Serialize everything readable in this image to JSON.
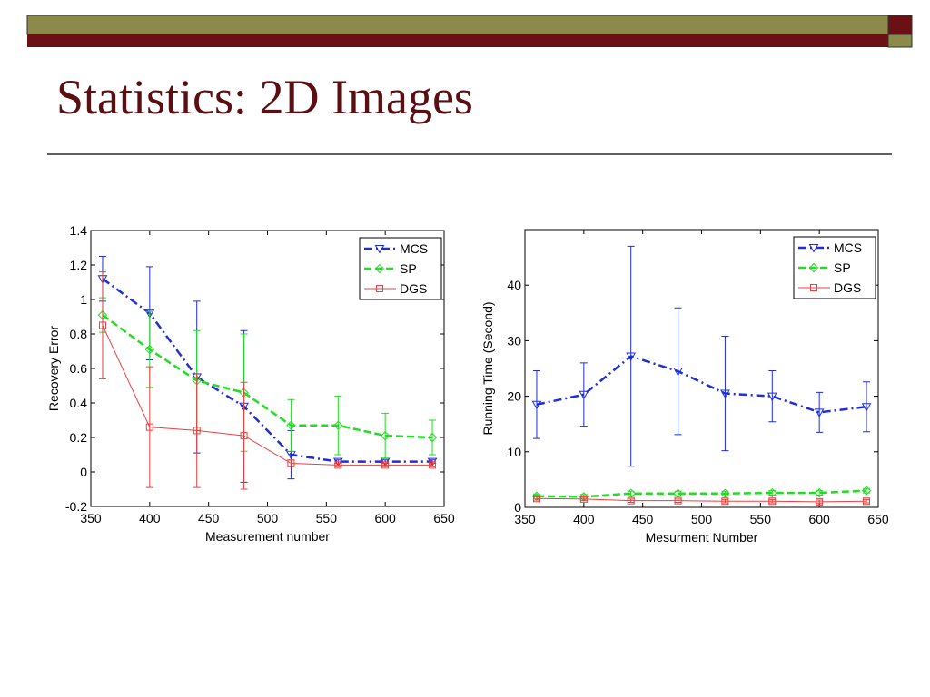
{
  "title": "Statistics: 2D Images",
  "chart_data": [
    {
      "type": "line",
      "x_label": "Measurement number",
      "y_label": "Recovery Error",
      "x": [
        360,
        400,
        440,
        480,
        520,
        560,
        600,
        640
      ],
      "xlim": [
        350,
        650
      ],
      "xticks": [
        350,
        400,
        450,
        500,
        550,
        600,
        650
      ],
      "ylim": [
        -0.2,
        1.4
      ],
      "yticks": [
        -0.2,
        0,
        0.2,
        0.4,
        0.6,
        0.8,
        1,
        1.2,
        1.4
      ],
      "legend": "upper right",
      "series": [
        {
          "name": "MCS",
          "color": "#1f2fd6",
          "linestyle": "dashdot",
          "marker": "triangle-down",
          "values": [
            1.12,
            0.92,
            0.55,
            0.38,
            0.1,
            0.06,
            0.06,
            0.06
          ],
          "errors": [
            0.13,
            0.27,
            0.44,
            0.44,
            0.14,
            0.01,
            0.01,
            0.01
          ]
        },
        {
          "name": "SP",
          "color": "#22dd22",
          "linestyle": "dashed",
          "marker": "diamond",
          "values": [
            0.91,
            0.71,
            0.53,
            0.46,
            0.27,
            0.27,
            0.21,
            0.2
          ],
          "errors": [
            0.1,
            0.22,
            0.29,
            0.34,
            0.15,
            0.17,
            0.13,
            0.1
          ]
        },
        {
          "name": "DGS",
          "color": "#e84040",
          "linestyle": "solid",
          "marker": "square",
          "values": [
            0.85,
            0.26,
            0.24,
            0.21,
            0.05,
            0.04,
            0.04,
            0.04
          ],
          "errors": [
            0.31,
            0.35,
            0.33,
            0.31,
            0.02,
            0.01,
            0.01,
            0.01
          ]
        }
      ]
    },
    {
      "type": "line",
      "x_label": "Mesurment Number",
      "y_label": "Running Time (Second)",
      "x": [
        360,
        400,
        440,
        480,
        520,
        560,
        600,
        640
      ],
      "xlim": [
        350,
        650
      ],
      "xticks": [
        350,
        400,
        450,
        500,
        550,
        600,
        650
      ],
      "ylim": [
        0,
        50
      ],
      "yticks": [
        0,
        10,
        20,
        30,
        40
      ],
      "legend": "upper right",
      "series": [
        {
          "name": "MCS",
          "color": "#1f2fd6",
          "linestyle": "dashdot",
          "marker": "triangle-down",
          "values": [
            18.5,
            20.3,
            27.2,
            24.5,
            20.5,
            20.0,
            17.1,
            18.1
          ],
          "errors": [
            6.1,
            5.7,
            19.8,
            11.4,
            10.3,
            4.6,
            3.6,
            4.5
          ]
        },
        {
          "name": "SP",
          "color": "#22dd22",
          "linestyle": "dashed",
          "marker": "diamond",
          "values": [
            2.0,
            1.9,
            2.5,
            2.5,
            2.5,
            2.6,
            2.6,
            3.0
          ],
          "errors": [
            0.4,
            0.4,
            0.4,
            0.4,
            0.4,
            0.4,
            0.4,
            0.4
          ]
        },
        {
          "name": "DGS",
          "color": "#e84040",
          "linestyle": "solid",
          "marker": "square",
          "values": [
            1.6,
            1.5,
            1.2,
            1.2,
            1.1,
            1.1,
            1.0,
            1.1
          ],
          "errors": [
            0.3,
            0.3,
            0.3,
            0.3,
            0.3,
            0.3,
            0.3,
            0.3
          ]
        }
      ]
    }
  ]
}
